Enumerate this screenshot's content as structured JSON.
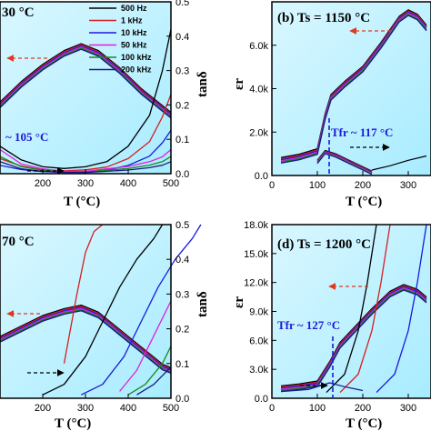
{
  "chart_data": [
    {
      "type": "line",
      "panel": "a",
      "title": "30 °C",
      "xlabel": "T (°C)",
      "ylabel_right": "tanδ",
      "xlim": [
        100,
        500
      ],
      "xticks": [
        "200",
        "300",
        "400",
        "500"
      ],
      "ylim_right": [
        0,
        0.5
      ],
      "yticks_right": [
        "0.0",
        "0.1",
        "0.2",
        "0.3",
        "0.4",
        "0.5"
      ],
      "legend": [
        "500 Hz",
        "1 kHz",
        "10 kHz",
        "50 kHz",
        "100 kHz",
        "200 kHz"
      ],
      "legend_position": "top-right",
      "colors": [
        "#000000",
        "#d42020",
        "#1a1adc",
        "#dd20dd",
        "#1a8a1a",
        "#1a1a8a"
      ],
      "annotation": "~ 105 °C",
      "permittivity_peak": {
        "x": [
          100,
          150,
          200,
          250,
          290,
          330,
          380,
          430,
          480,
          500
        ],
        "y": [
          0.2,
          0.26,
          0.31,
          0.35,
          0.37,
          0.35,
          0.3,
          0.24,
          0.19,
          0.17
        ]
      },
      "tan_delta": [
        {
          "name": "500 Hz",
          "x": [
            100,
            150,
            200,
            250,
            300,
            350,
            400,
            450,
            480,
            500
          ],
          "y": [
            0.08,
            0.04,
            0.02,
            0.015,
            0.02,
            0.035,
            0.08,
            0.17,
            0.3,
            0.42
          ]
        },
        {
          "name": "200 kHz",
          "x": [
            100,
            150,
            200,
            250,
            300,
            350,
            400,
            450,
            480,
            500
          ],
          "y": [
            0.05,
            0.02,
            0.01,
            0.005,
            0.005,
            0.01,
            0.015,
            0.025,
            0.035,
            0.05
          ]
        }
      ]
    },
    {
      "type": "line",
      "panel": "b",
      "title": "(b) Ts = 1150 °C",
      "xlabel": "T (°C)",
      "ylabel": "εr",
      "xlim": [
        0,
        350
      ],
      "xticks": [
        "0",
        "100",
        "200",
        "300"
      ],
      "ylim": [
        0,
        8000
      ],
      "yticks": [
        "0.0",
        "2.0k",
        "4.0k",
        "6.0k"
      ],
      "annotation": "Tfr ~ 117 °C",
      "series": [
        {
          "name": "500 Hz",
          "x": [
            20,
            60,
            100,
            117,
            130,
            160,
            200,
            240,
            280,
            300,
            320,
            340
          ],
          "y": [
            700,
            850,
            1100,
            2700,
            3600,
            4200,
            4900,
            6000,
            7200,
            7500,
            7300,
            6800
          ]
        }
      ],
      "tan_delta_peak": {
        "x": [
          100,
          117,
          140,
          170,
          200,
          220
        ],
        "y": [
          700,
          1150,
          1000,
          700,
          400,
          200
        ]
      }
    },
    {
      "type": "line",
      "panel": "c",
      "title": "70 °C",
      "xlabel": "T (°C)",
      "ylabel_right": "tanδ",
      "xlim": [
        100,
        500
      ],
      "xticks": [
        "200",
        "300",
        "400",
        "500"
      ],
      "ylim_right": [
        0,
        0.5
      ],
      "yticks_right": [
        "0.0",
        "0.1",
        "0.2",
        "0.3",
        "0.4",
        "0.5"
      ],
      "permittivity_peak": {
        "x": [
          100,
          150,
          200,
          250,
          290,
          330,
          380,
          430,
          480,
          500
        ],
        "y": [
          0.17,
          0.2,
          0.23,
          0.25,
          0.26,
          0.24,
          0.19,
          0.14,
          0.09,
          0.08
        ]
      },
      "tan_delta": [
        {
          "name": "500 Hz",
          "x": [
            200,
            250,
            300,
            340,
            380,
            420,
            460,
            480
          ],
          "y": [
            0.01,
            0.04,
            0.12,
            0.22,
            0.32,
            0.4,
            0.46,
            0.5
          ]
        },
        {
          "name": "1 kHz",
          "x": [
            250,
            280,
            300,
            320,
            340
          ],
          "y": [
            0.1,
            0.3,
            0.42,
            0.48,
            0.5
          ]
        }
      ]
    },
    {
      "type": "line",
      "panel": "d",
      "title": "(d) Ts = 1200 °C",
      "xlabel": "T (°C)",
      "ylabel": "εr",
      "xlim": [
        0,
        350
      ],
      "xticks": [
        "0",
        "100",
        "200",
        "300"
      ],
      "ylim": [
        0,
        18000
      ],
      "yticks": [
        "0.0",
        "3.0k",
        "6.0k",
        "9.0k",
        "12.0k",
        "15.0k",
        "18.0k"
      ],
      "annotation": "Tfr ~ 127 °C",
      "series": [
        {
          "name": "500 Hz",
          "x": [
            20,
            60,
            100,
            127,
            150,
            180,
            220,
            260,
            290,
            320,
            340
          ],
          "y": [
            1000,
            1200,
            1500,
            3500,
            5500,
            7000,
            9000,
            10800,
            11500,
            11000,
            10200
          ]
        }
      ],
      "tan_delta": [
        {
          "name": "500 Hz",
          "x": [
            120,
            160,
            190,
            210,
            230
          ],
          "y": [
            600,
            2500,
            7000,
            12000,
            18000
          ]
        }
      ]
    }
  ]
}
